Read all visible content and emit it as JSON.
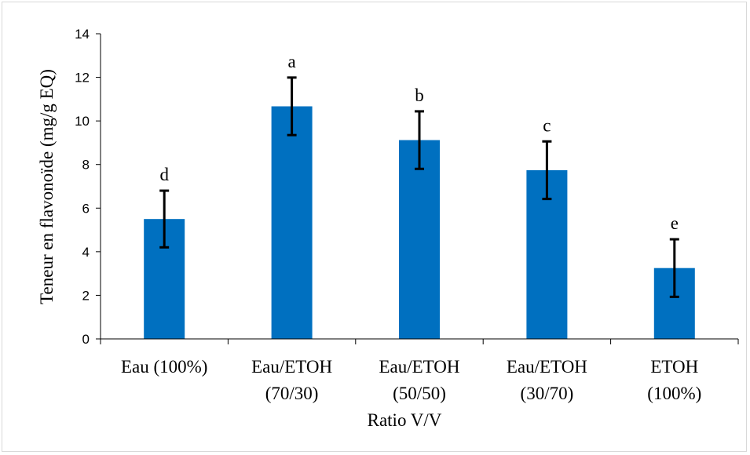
{
  "chart_data": {
    "type": "bar",
    "categories": [
      [
        "Eau (100%)"
      ],
      [
        "Eau/ETOH",
        "(70/30)"
      ],
      [
        "Eau/ETOH",
        "(50/50)"
      ],
      [
        "Eau/ETOH",
        "(30/70)"
      ],
      [
        "ETOH",
        "(100%)"
      ]
    ],
    "values": [
      5.5,
      10.67,
      9.12,
      7.74,
      3.25
    ],
    "errors": [
      1.3,
      1.32,
      1.32,
      1.32,
      1.32
    ],
    "significance_letters": [
      "d",
      "a",
      "b",
      "c",
      "e"
    ],
    "xlabel": "Ratio V/V",
    "ylabel": "Teneur en flavonoïde (mg/g EQ)",
    "ylim": [
      0,
      14
    ],
    "yticks": [
      0,
      2,
      4,
      6,
      8,
      10,
      12,
      14
    ],
    "grid": false,
    "legend": "none",
    "bar_color": "#0070C0"
  }
}
